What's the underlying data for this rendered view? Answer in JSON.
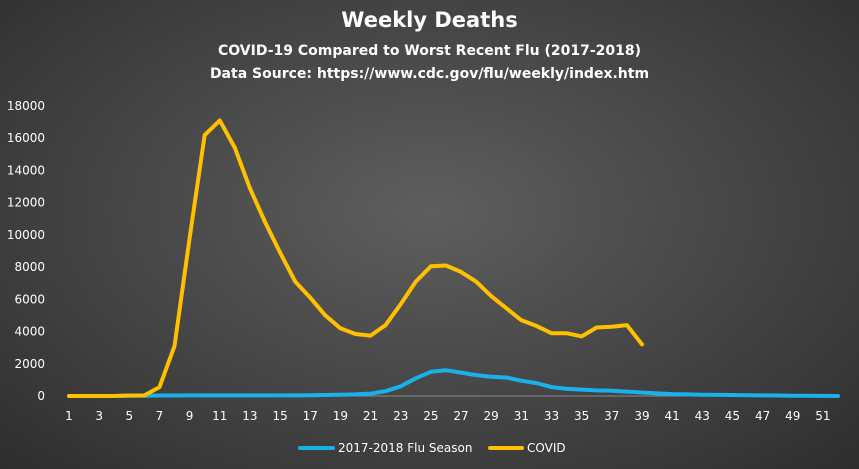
{
  "chart_data": {
    "type": "line",
    "title": "Weekly Deaths",
    "subtitle": "COVID-19 Compared to Worst Recent Flu (2017-2018)",
    "source": "Data Source:  https://www.cdc.gov/flu/weekly/index.htm",
    "xlabel": "",
    "ylabel": "",
    "xlim": [
      1,
      52
    ],
    "ylim": [
      0,
      18000
    ],
    "x_ticks": [
      1,
      3,
      5,
      7,
      9,
      11,
      13,
      15,
      17,
      19,
      21,
      23,
      25,
      27,
      29,
      31,
      33,
      35,
      37,
      39,
      41,
      43,
      45,
      47,
      49,
      51
    ],
    "y_ticks": [
      0,
      2000,
      4000,
      6000,
      8000,
      10000,
      12000,
      14000,
      16000,
      18000
    ],
    "grid": false,
    "legend": "bottom",
    "series": [
      {
        "name": "2017-2018 Flu Season",
        "color": "#1ab0e8",
        "x": [
          1,
          2,
          3,
          4,
          5,
          6,
          7,
          8,
          9,
          10,
          11,
          12,
          13,
          14,
          15,
          16,
          17,
          18,
          19,
          20,
          21,
          22,
          23,
          24,
          25,
          26,
          27,
          28,
          29,
          30,
          31,
          32,
          33,
          34,
          35,
          36,
          37,
          38,
          39,
          40,
          41,
          42,
          43,
          44,
          45,
          46,
          47,
          48,
          49,
          50,
          51,
          52
        ],
        "values": [
          0,
          0,
          0,
          0,
          10,
          20,
          30,
          30,
          40,
          40,
          40,
          40,
          40,
          40,
          40,
          40,
          50,
          60,
          80,
          100,
          150,
          300,
          600,
          1100,
          1500,
          1600,
          1450,
          1300,
          1200,
          1150,
          950,
          800,
          550,
          450,
          400,
          350,
          330,
          270,
          220,
          160,
          120,
          100,
          80,
          70,
          60,
          50,
          40,
          30,
          20,
          10,
          5,
          0
        ]
      },
      {
        "name": "COVID",
        "color": "#ffc000",
        "x": [
          1,
          2,
          3,
          4,
          5,
          6,
          7,
          8,
          9,
          10,
          11,
          12,
          13,
          14,
          15,
          16,
          17,
          18,
          19,
          20,
          21,
          22,
          23,
          24,
          25,
          26,
          27,
          28,
          29,
          30,
          31,
          32,
          33,
          34,
          35,
          36,
          37,
          38,
          39
        ],
        "values": [
          0,
          0,
          0,
          0,
          30,
          40,
          550,
          3100,
          9800,
          16200,
          17100,
          15400,
          12900,
          10800,
          8900,
          7100,
          6100,
          5000,
          4200,
          3850,
          3750,
          4400,
          5700,
          7100,
          8050,
          8100,
          7700,
          7100,
          6200,
          5450,
          4700,
          4350,
          3900,
          3900,
          3700,
          4250,
          4300,
          4400,
          3200
        ]
      }
    ]
  }
}
